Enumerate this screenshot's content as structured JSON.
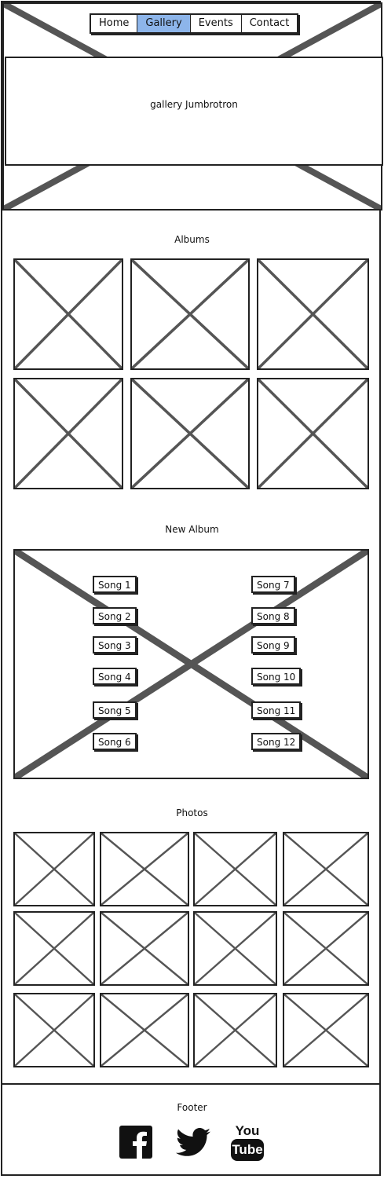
{
  "nav": {
    "tabs": [
      {
        "label": "Home",
        "active": false
      },
      {
        "label": "Gallery",
        "active": true
      },
      {
        "label": "Events",
        "active": false
      },
      {
        "label": "Contact",
        "active": false
      }
    ]
  },
  "jumbotron": {
    "text": "gallery Jumbrotron"
  },
  "albums": {
    "title": "Albums"
  },
  "new_album": {
    "title": "New Album",
    "songs_left": [
      "Song 1",
      "Song 2",
      "Song 3",
      "Song 4",
      "Song 5",
      "Song 6"
    ],
    "songs_right": [
      "Song 7",
      "Song 8",
      "Song 9",
      "Song 10",
      "Song 11",
      "Song 12"
    ]
  },
  "photos": {
    "title": "Photos"
  },
  "footer": {
    "title": "Footer",
    "icons": [
      "facebook-icon",
      "twitter-icon",
      "youtube-icon"
    ],
    "youtube_you": "You",
    "youtube_tube": "Tube"
  }
}
